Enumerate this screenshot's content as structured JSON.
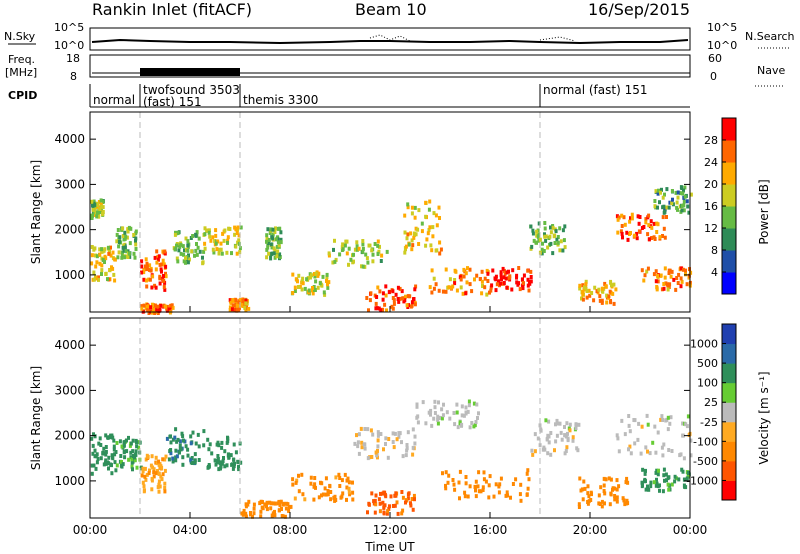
{
  "header": {
    "station": "Rankin Inlet (fitACF)",
    "beam": "Beam 10",
    "date": "16/Sep/2015"
  },
  "strips": {
    "nsky_label": "N.Sky",
    "nsky_ticks": [
      "10^5",
      "10^0"
    ],
    "nsearch_label": "N.Search",
    "nsearch_ticks": [
      "10^5",
      "10^0"
    ],
    "freq_label": "Freq.",
    "freq_unit": "[MHz]",
    "freq_ticks": [
      "18",
      "8"
    ],
    "nave_label": "Nave",
    "nave_ticks": [
      "60",
      "0"
    ],
    "cpid_label": "CPID"
  },
  "cpid_segments": [
    {
      "start_h": 0.0,
      "end_h": 2.0,
      "name": "normal"
    },
    {
      "start_h": 2.0,
      "end_h": 6.0,
      "name": "twofsound 3503"
    },
    {
      "start_h": 2.0,
      "end_h": 6.0,
      "name": "(fast) 151"
    },
    {
      "start_h": 6.0,
      "end_h": 18.0,
      "name": "themis 3300"
    },
    {
      "start_h": 18.0,
      "end_h": 24.0,
      "name": "normal (fast) 151"
    }
  ],
  "x_axis": {
    "label": "Time UT",
    "ticks": [
      "00:00",
      "04:00",
      "08:00",
      "12:00",
      "16:00",
      "20:00",
      "00:00"
    ],
    "range_hours": [
      0,
      24
    ]
  },
  "y_axis": {
    "label": "Slant Range [km]",
    "ticks": [
      "1000",
      "2000",
      "3000",
      "4000"
    ],
    "range_km": [
      180,
      4600
    ]
  },
  "colorbars": {
    "power": {
      "label": "Power [dB]",
      "ticks": [
        "28",
        "24",
        "20",
        "16",
        "12",
        "8",
        "4"
      ],
      "colors": [
        "#0000ff",
        "#1f4fa8",
        "#2e8b57",
        "#66bb44",
        "#cccc22",
        "#ffaa00",
        "#ff6600",
        "#ff0000"
      ]
    },
    "velocity": {
      "label": "Velocity [m s⁻¹]",
      "ticks": [
        "1000",
        "500",
        "100",
        "25",
        "-25",
        "-100",
        "-500",
        "-1000"
      ],
      "colors": [
        "#2040b0",
        "#2a6aa8",
        "#2f8f5a",
        "#66cc33",
        "#bbbbbb",
        "#ffaa22",
        "#ff8800",
        "#ff5500",
        "#ff0000"
      ]
    }
  },
  "chart_data": {
    "type": "heatmap",
    "title": "Rankin Inlet (fitACF)",
    "xlabel": "Time UT",
    "ylabel": "Slant Range [km]",
    "xlim": [
      0,
      24
    ],
    "ylim": [
      180,
      4600
    ],
    "grid": false,
    "mode_change_hours": [
      2,
      6,
      18
    ],
    "power_clusters": [
      {
        "t0": 0.0,
        "t1": 0.5,
        "r0": 2300,
        "r1": 2700,
        "p": 16
      },
      {
        "t0": 0.0,
        "t1": 1.0,
        "r0": 900,
        "r1": 1700,
        "p": 20
      },
      {
        "t0": 1.0,
        "t1": 1.8,
        "r0": 1400,
        "r1": 2100,
        "p": 14
      },
      {
        "t0": 2.0,
        "t1": 3.0,
        "r0": 700,
        "r1": 1600,
        "p": 26
      },
      {
        "t0": 2.0,
        "t1": 3.3,
        "r0": 200,
        "r1": 400,
        "p": 26
      },
      {
        "t0": 3.3,
        "t1": 4.5,
        "r0": 1300,
        "r1": 2000,
        "p": 14
      },
      {
        "t0": 4.5,
        "t1": 6.0,
        "r0": 1500,
        "r1": 2100,
        "p": 18
      },
      {
        "t0": 5.5,
        "t1": 6.3,
        "r0": 250,
        "r1": 500,
        "p": 24
      },
      {
        "t0": 7.0,
        "t1": 7.6,
        "r0": 1400,
        "r1": 2100,
        "p": 14
      },
      {
        "t0": 8.0,
        "t1": 9.5,
        "r0": 600,
        "r1": 1100,
        "p": 18
      },
      {
        "t0": 9.5,
        "t1": 12.0,
        "r0": 1200,
        "r1": 1800,
        "p": 16
      },
      {
        "t0": 11.0,
        "t1": 13.0,
        "r0": 250,
        "r1": 800,
        "p": 28
      },
      {
        "t0": 12.5,
        "t1": 14.0,
        "r0": 1500,
        "r1": 2700,
        "p": 20
      },
      {
        "t0": 13.5,
        "t1": 16.0,
        "r0": 600,
        "r1": 1200,
        "p": 24
      },
      {
        "t0": 16.0,
        "t1": 17.6,
        "r0": 700,
        "r1": 1200,
        "p": 30
      },
      {
        "t0": 17.5,
        "t1": 19.0,
        "r0": 1500,
        "r1": 2200,
        "p": 14
      },
      {
        "t0": 19.5,
        "t1": 21.0,
        "r0": 400,
        "r1": 900,
        "p": 22
      },
      {
        "t0": 21.0,
        "t1": 23.0,
        "r0": 1800,
        "r1": 2400,
        "p": 26
      },
      {
        "t0": 22.0,
        "t1": 24.0,
        "r0": 700,
        "r1": 1200,
        "p": 24
      },
      {
        "t0": 22.5,
        "t1": 24.0,
        "r0": 2400,
        "r1": 3000,
        "p": 12
      }
    ],
    "velocity_clusters": [
      {
        "t0": 0.0,
        "t1": 1.0,
        "r0": 1200,
        "r1": 2100,
        "v": 300
      },
      {
        "t0": 1.0,
        "t1": 2.0,
        "r0": 1300,
        "r1": 2000,
        "v": 120
      },
      {
        "t0": 2.0,
        "t1": 3.0,
        "r0": 800,
        "r1": 1600,
        "v": -80
      },
      {
        "t0": 3.0,
        "t1": 4.5,
        "r0": 1400,
        "r1": 2200,
        "v": 400
      },
      {
        "t0": 4.5,
        "t1": 6.0,
        "r0": 1300,
        "r1": 2000,
        "v": 200
      },
      {
        "t0": 6.0,
        "t1": 8.0,
        "r0": 250,
        "r1": 600,
        "v": -300
      },
      {
        "t0": 8.0,
        "t1": 10.5,
        "r0": 600,
        "r1": 1200,
        "v": -150
      },
      {
        "t0": 10.5,
        "t1": 13.0,
        "r0": 1500,
        "r1": 2200,
        "v": -10
      },
      {
        "t0": 11.0,
        "t1": 13.0,
        "r0": 300,
        "r1": 800,
        "v": -600
      },
      {
        "t0": 13.0,
        "t1": 15.5,
        "r0": 2200,
        "r1": 2800,
        "v": 5
      },
      {
        "t0": 14.0,
        "t1": 17.6,
        "r0": 600,
        "r1": 1300,
        "v": -250
      },
      {
        "t0": 17.6,
        "t1": 19.5,
        "r0": 1600,
        "r1": 2400,
        "v": 0
      },
      {
        "t0": 19.5,
        "t1": 21.5,
        "r0": 400,
        "r1": 1100,
        "v": -300
      },
      {
        "t0": 21.0,
        "t1": 24.0,
        "r0": 1500,
        "r1": 2500,
        "v": 0
      },
      {
        "t0": 22.0,
        "t1": 24.0,
        "r0": 800,
        "r1": 1300,
        "v": 150
      }
    ]
  }
}
